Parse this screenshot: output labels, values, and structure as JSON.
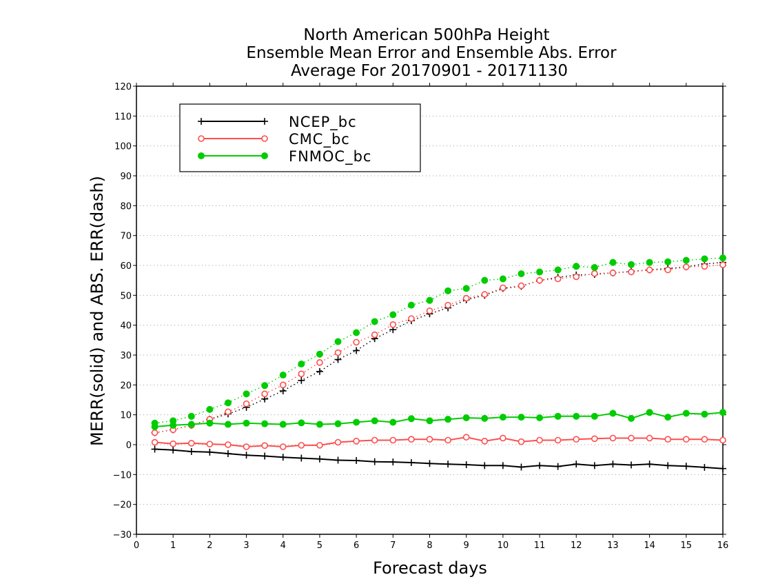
{
  "chart_data": {
    "type": "line",
    "title": [
      "North American 500hPa Height",
      "Ensemble Mean Error and Ensemble Abs. Error",
      "Average For 20170901 - 20171130"
    ],
    "xlabel": "Forecast days",
    "ylabel": "MERR(solid) and ABS. ERR(dash)",
    "xlim": [
      0,
      16
    ],
    "ylim": [
      -30,
      120
    ],
    "xticks": [
      0,
      1,
      2,
      3,
      4,
      5,
      6,
      7,
      8,
      9,
      10,
      11,
      12,
      13,
      14,
      15,
      16
    ],
    "yticks": [
      -30,
      -20,
      -10,
      0,
      10,
      20,
      30,
      40,
      50,
      60,
      70,
      80,
      90,
      100,
      110,
      120
    ],
    "grid": true,
    "legend_position": "top-left",
    "x": [
      0.5,
      1,
      1.5,
      2,
      2.5,
      3,
      3.5,
      4,
      4.5,
      5,
      5.5,
      6,
      6.5,
      7,
      7.5,
      8,
      8.5,
      9,
      9.5,
      10,
      10.5,
      11,
      11.5,
      12,
      12.5,
      13,
      13.5,
      14,
      14.5,
      15,
      15.5,
      16
    ],
    "series": [
      {
        "name": "NCEP_bc",
        "color": "#000000",
        "marker": "plus",
        "merr": [
          -1.5,
          -1.8,
          -2.3,
          -2.5,
          -3.0,
          -3.5,
          -3.8,
          -4.2,
          -4.5,
          -4.8,
          -5.2,
          -5.3,
          -5.7,
          -5.8,
          -6.0,
          -6.3,
          -6.5,
          -6.7,
          -7.0,
          -7.0,
          -7.5,
          -7.0,
          -7.3,
          -6.5,
          -7.0,
          -6.5,
          -6.8,
          -6.5,
          -7.0,
          -7.2,
          -7.6,
          -8.0
        ],
        "abs_err": [
          4.0,
          5.0,
          6.5,
          8.5,
          10.3,
          12.5,
          15.3,
          18.0,
          21.5,
          24.5,
          28.5,
          31.5,
          35.5,
          38.5,
          41.5,
          43.8,
          45.8,
          48.5,
          50.0,
          52.3,
          53.0,
          55.0,
          56.0,
          56.8,
          57.0,
          57.5,
          58.0,
          58.5,
          59.0,
          59.5,
          60.5,
          61.0
        ]
      },
      {
        "name": "CMC_bc",
        "color": "#ff4d4d",
        "marker": "open-circle",
        "merr": [
          0.8,
          0.3,
          0.5,
          0.2,
          0.0,
          -0.7,
          -0.3,
          -0.7,
          -0.2,
          -0.2,
          0.8,
          1.2,
          1.5,
          1.5,
          1.8,
          1.8,
          1.5,
          2.5,
          1.2,
          2.2,
          1.0,
          1.5,
          1.5,
          1.8,
          2.0,
          2.2,
          2.2,
          2.2,
          1.8,
          1.8,
          1.8,
          1.5
        ],
        "abs_err": [
          4.0,
          5.0,
          6.5,
          8.5,
          11.0,
          13.7,
          17.0,
          20.0,
          23.7,
          27.5,
          30.8,
          34.3,
          36.8,
          40.2,
          42.2,
          44.8,
          46.7,
          49.0,
          50.3,
          52.5,
          53.2,
          55.0,
          55.5,
          56.2,
          57.3,
          57.5,
          57.8,
          58.5,
          58.5,
          59.5,
          59.7,
          60.2
        ]
      },
      {
        "name": "FNMOC_bc",
        "color": "#00cc00",
        "marker": "filled-circle",
        "merr": [
          6.0,
          6.5,
          6.8,
          7.2,
          6.8,
          7.2,
          7.0,
          6.8,
          7.3,
          6.8,
          7.0,
          7.5,
          8.0,
          7.5,
          8.7,
          8.0,
          8.5,
          9.0,
          8.8,
          9.2,
          9.2,
          9.0,
          9.5,
          9.5,
          9.5,
          10.5,
          8.8,
          10.8,
          9.2,
          10.5,
          10.2,
          10.8
        ],
        "abs_err": [
          7.2,
          8.0,
          9.5,
          11.8,
          14.0,
          17.0,
          19.8,
          23.3,
          27.0,
          30.3,
          34.5,
          37.5,
          41.2,
          43.5,
          46.7,
          48.3,
          51.5,
          52.3,
          55.0,
          55.5,
          57.2,
          57.8,
          58.5,
          59.7,
          59.3,
          61.0,
          60.3,
          61.0,
          61.2,
          61.7,
          62.2,
          62.5
        ]
      }
    ]
  }
}
